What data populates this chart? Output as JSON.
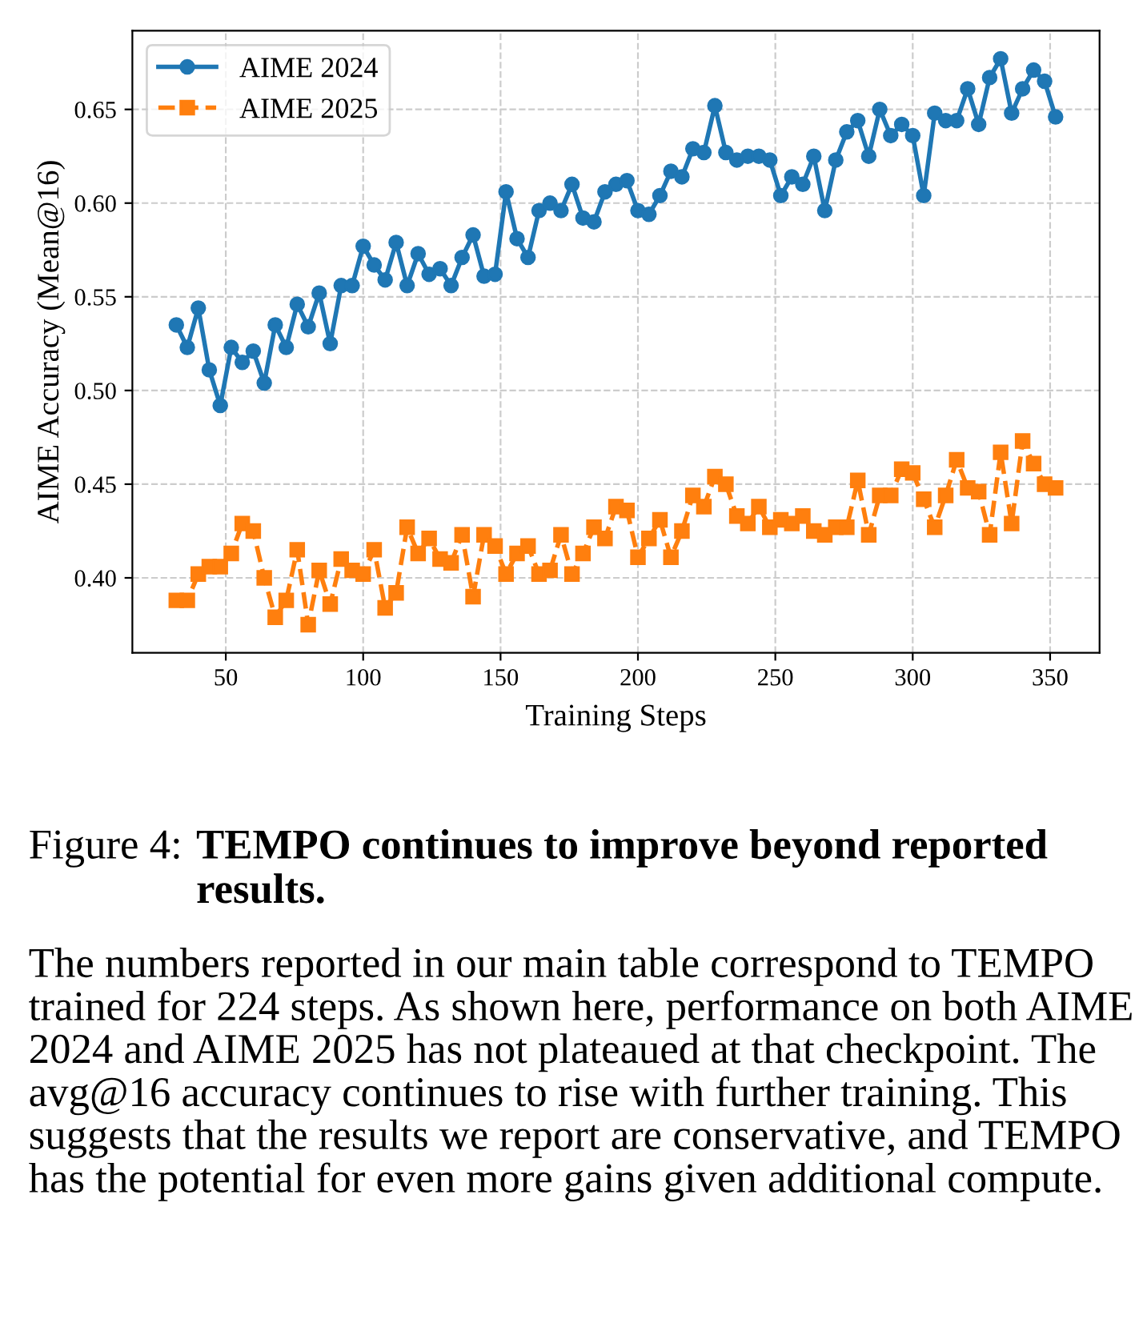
{
  "chart_data": {
    "type": "line",
    "xlabel": "Training Steps",
    "ylabel": "AIME Accuracy (Mean@16)",
    "x": [
      32,
      36,
      40,
      44,
      48,
      52,
      56,
      60,
      64,
      68,
      72,
      76,
      80,
      84,
      88,
      92,
      96,
      100,
      104,
      108,
      112,
      116,
      120,
      124,
      128,
      132,
      136,
      140,
      144,
      148,
      152,
      156,
      160,
      164,
      168,
      172,
      176,
      180,
      184,
      188,
      192,
      196,
      200,
      204,
      208,
      212,
      216,
      220,
      224,
      228,
      232,
      236,
      240,
      244,
      248,
      252,
      256,
      260,
      264,
      268,
      272,
      276,
      280,
      284,
      288,
      292,
      296,
      300,
      304,
      308,
      312,
      316,
      320,
      324,
      328,
      332,
      336,
      340,
      344,
      348,
      352
    ],
    "series": [
      {
        "name": "AIME 2024",
        "color": "#1f77b4",
        "marker": "circle",
        "line_style": "solid",
        "values": [
          0.535,
          0.523,
          0.544,
          0.511,
          0.492,
          0.523,
          0.515,
          0.521,
          0.504,
          0.535,
          0.523,
          0.546,
          0.534,
          0.552,
          0.525,
          0.556,
          0.556,
          0.577,
          0.567,
          0.559,
          0.579,
          0.556,
          0.573,
          0.562,
          0.565,
          0.556,
          0.571,
          0.583,
          0.561,
          0.562,
          0.606,
          0.581,
          0.571,
          0.596,
          0.6,
          0.596,
          0.61,
          0.592,
          0.59,
          0.606,
          0.61,
          0.612,
          0.596,
          0.594,
          0.604,
          0.617,
          0.614,
          0.629,
          0.627,
          0.652,
          0.627,
          0.623,
          0.625,
          0.625,
          0.623,
          0.604,
          0.614,
          0.61,
          0.625,
          0.596,
          0.623,
          0.638,
          0.644,
          0.625,
          0.65,
          0.636,
          0.642,
          0.636,
          0.604,
          0.648,
          0.644,
          0.644,
          0.661,
          0.642,
          0.667,
          0.677,
          0.648,
          0.661,
          0.671,
          0.665,
          0.646
        ]
      },
      {
        "name": "AIME 2025",
        "color": "#ff7f0e",
        "marker": "square",
        "line_style": "dashed",
        "values": [
          0.388,
          0.388,
          0.402,
          0.406,
          0.406,
          0.413,
          0.429,
          0.425,
          0.4,
          0.379,
          0.388,
          0.415,
          0.375,
          0.404,
          0.386,
          0.41,
          0.404,
          0.402,
          0.415,
          0.384,
          0.392,
          0.427,
          0.413,
          0.421,
          0.41,
          0.408,
          0.423,
          0.39,
          0.423,
          0.417,
          0.402,
          0.413,
          0.417,
          0.402,
          0.404,
          0.423,
          0.402,
          0.413,
          0.427,
          0.421,
          0.438,
          0.436,
          0.411,
          0.421,
          0.431,
          0.411,
          0.425,
          0.444,
          0.438,
          0.454,
          0.45,
          0.433,
          0.429,
          0.438,
          0.427,
          0.431,
          0.429,
          0.433,
          0.425,
          0.423,
          0.427,
          0.427,
          0.452,
          0.423,
          0.444,
          0.444,
          0.458,
          0.456,
          0.442,
          0.427,
          0.444,
          0.463,
          0.448,
          0.446,
          0.423,
          0.467,
          0.429,
          0.473,
          0.461,
          0.45,
          0.448
        ]
      }
    ],
    "xlim": [
      16,
      368
    ],
    "ylim": [
      0.36,
      0.692
    ],
    "xticks": [
      50,
      100,
      150,
      200,
      250,
      300,
      350
    ],
    "yticks": [
      {
        "value": 0.4,
        "label": "0.40"
      },
      {
        "value": 0.45,
        "label": "0.45"
      },
      {
        "value": 0.5,
        "label": "0.50"
      },
      {
        "value": 0.55,
        "label": "0.55"
      },
      {
        "value": 0.6,
        "label": "0.60"
      },
      {
        "value": 0.65,
        "label": "0.65"
      }
    ],
    "grid": true,
    "legend": "top left",
    "annotations": [
      "Figure 4:",
      "TEMPO continues to improve beyond reported results.",
      "The numbers reported in our main table correspond to TEMPO trained for 224 steps. As shown here, performance on both AIME 2024 and AIME 2025 has not plateaued at that checkpoint. The avg@16 accuracy continues to rise with further training. This suggests that the results we report are conservative, and TEMPO has the potential for even more gains given additional compute."
    ]
  }
}
